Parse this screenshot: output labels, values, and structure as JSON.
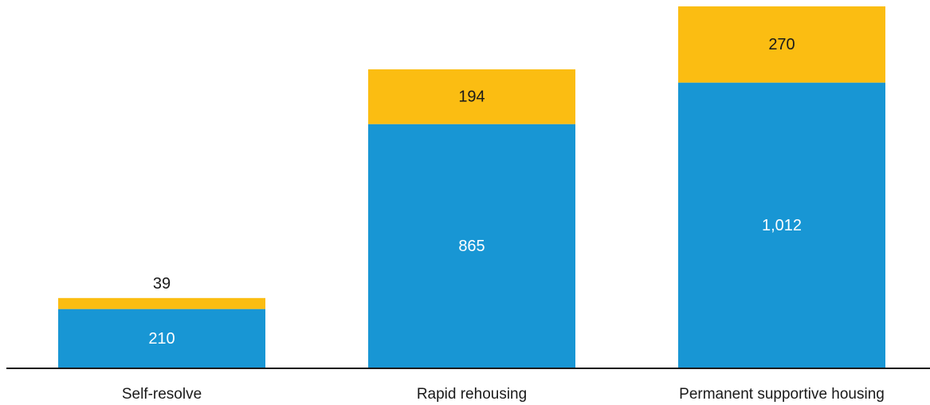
{
  "chart_data": {
    "type": "bar",
    "stacked": true,
    "categories": [
      "Self-resolve",
      "Rapid rehousing",
      "Permanent supportive housing"
    ],
    "series": [
      {
        "values": [
          210,
          865,
          1012
        ],
        "color": "#1896d4",
        "label_color": "#ffffff"
      },
      {
        "values": [
          39,
          194,
          270
        ],
        "color": "#fbbd12",
        "label_color": "#1a1a1a"
      }
    ],
    "data_labels": [
      [
        "210",
        "865",
        "1,012"
      ],
      [
        "39",
        "194",
        "270"
      ]
    ],
    "title": "",
    "xlabel": "",
    "ylabel": "",
    "ylim": [
      0,
      1282
    ],
    "grid": false,
    "legend": "none",
    "axis_color": "#1a1a1a"
  }
}
